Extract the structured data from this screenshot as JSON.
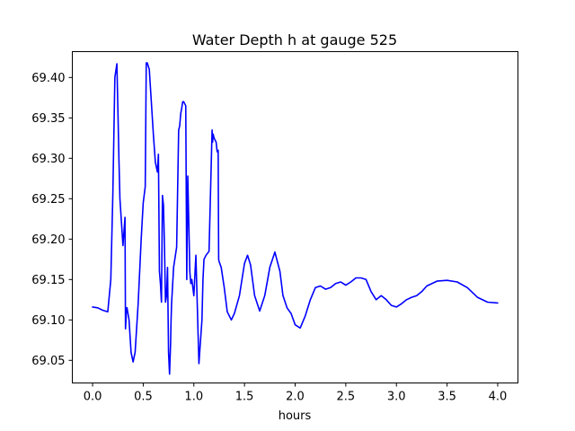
{
  "chart_data": {
    "type": "line",
    "title": "Water Depth h at gauge 525",
    "xlabel": "hours",
    "ylabel": "",
    "xlim": [
      -0.2,
      4.2
    ],
    "ylim": [
      69.022,
      69.432
    ],
    "xticks": [
      0.0,
      0.5,
      1.0,
      1.5,
      2.0,
      2.5,
      3.0,
      3.5,
      4.0
    ],
    "xtick_labels": [
      "0.0",
      "0.5",
      "1.0",
      "1.5",
      "2.0",
      "2.5",
      "3.0",
      "3.5",
      "4.0"
    ],
    "yticks": [
      69.05,
      69.1,
      69.15,
      69.2,
      69.25,
      69.3,
      69.35,
      69.4
    ],
    "ytick_labels": [
      "69.05",
      "69.10",
      "69.15",
      "69.20",
      "69.25",
      "69.30",
      "69.35",
      "69.40"
    ],
    "grid": false,
    "series": [
      {
        "color": "#0000ff",
        "x": [
          0.0,
          0.05,
          0.1,
          0.15,
          0.18,
          0.2,
          0.22,
          0.24,
          0.25,
          0.26,
          0.27,
          0.3,
          0.32,
          0.325,
          0.33,
          0.335,
          0.34,
          0.36,
          0.38,
          0.4,
          0.42,
          0.45,
          0.48,
          0.5,
          0.52,
          0.53,
          0.54,
          0.56,
          0.58,
          0.6,
          0.62,
          0.64,
          0.65,
          0.66,
          0.67,
          0.68,
          0.69,
          0.7,
          0.71,
          0.72,
          0.73,
          0.74,
          0.75,
          0.76,
          0.77,
          0.775,
          0.78,
          0.8,
          0.83,
          0.85,
          0.86,
          0.87,
          0.88,
          0.89,
          0.9,
          0.92,
          0.93,
          0.94,
          0.95,
          0.96,
          0.97,
          0.98,
          0.99,
          1.0,
          1.02,
          1.05,
          1.08,
          1.09,
          1.1,
          1.12,
          1.15,
          1.18,
          1.185,
          1.19,
          1.2,
          1.22,
          1.23,
          1.24,
          1.245,
          1.25,
          1.27,
          1.3,
          1.33,
          1.37,
          1.4,
          1.45,
          1.5,
          1.53,
          1.56,
          1.6,
          1.65,
          1.7,
          1.75,
          1.8,
          1.85,
          1.88,
          1.92,
          1.96,
          2.0,
          2.05,
          2.1,
          2.15,
          2.2,
          2.25,
          2.3,
          2.35,
          2.4,
          2.45,
          2.5,
          2.55,
          2.6,
          2.65,
          2.7,
          2.75,
          2.8,
          2.85,
          2.9,
          2.95,
          3.0,
          3.05,
          3.1,
          3.15,
          3.2,
          3.25,
          3.3,
          3.4,
          3.5,
          3.6,
          3.7,
          3.8,
          3.9,
          4.0
        ],
        "y": [
          69.116,
          69.115,
          69.112,
          69.11,
          69.15,
          69.255,
          69.4,
          69.417,
          69.36,
          69.3,
          69.25,
          69.192,
          69.227,
          69.089,
          69.1,
          69.115,
          69.115,
          69.1,
          69.06,
          69.048,
          69.06,
          69.12,
          69.2,
          69.245,
          69.265,
          69.418,
          69.418,
          69.41,
          69.37,
          69.33,
          69.295,
          69.283,
          69.305,
          69.16,
          69.145,
          69.122,
          69.254,
          69.242,
          69.19,
          69.122,
          69.13,
          69.165,
          69.06,
          69.033,
          69.07,
          69.1,
          69.12,
          69.165,
          69.19,
          69.335,
          69.34,
          69.355,
          69.362,
          69.37,
          69.37,
          69.365,
          69.15,
          69.278,
          69.22,
          69.16,
          69.145,
          69.15,
          69.14,
          69.13,
          69.18,
          69.046,
          69.1,
          69.15,
          69.175,
          69.18,
          69.185,
          69.335,
          69.32,
          69.33,
          69.325,
          69.32,
          69.308,
          69.31,
          69.175,
          69.172,
          69.165,
          69.14,
          69.11,
          69.1,
          69.108,
          69.13,
          69.17,
          69.18,
          69.168,
          69.13,
          69.111,
          69.13,
          69.165,
          69.184,
          69.16,
          69.13,
          69.115,
          69.108,
          69.094,
          69.09,
          69.105,
          69.125,
          69.14,
          69.142,
          69.138,
          69.14,
          69.145,
          69.147,
          69.143,
          69.147,
          69.152,
          69.152,
          69.15,
          69.135,
          69.125,
          69.13,
          69.125,
          69.118,
          69.116,
          69.12,
          69.125,
          69.128,
          69.13,
          69.135,
          69.142,
          69.148,
          69.149,
          69.147,
          69.14,
          69.128,
          69.122,
          69.121
        ]
      }
    ]
  }
}
